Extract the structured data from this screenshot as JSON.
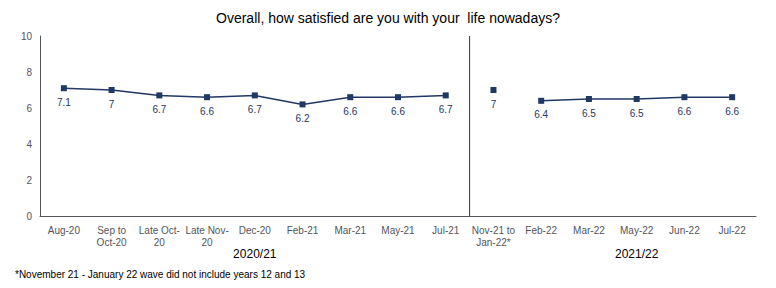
{
  "chart_data": {
    "type": "line",
    "title": "Overall, how satisfied are you with your  life nowadays?",
    "footnote": "*November 21 - January 22 wave did not include years 12 and 13",
    "annotations": [
      "2020/21",
      "2021/22"
    ],
    "categories": [
      "Aug-20",
      "Sep to\nOct-20",
      "Late Oct-\n20",
      "Late Nov-\n20",
      "Dec-20",
      "Feb-21",
      "Mar-21",
      "May-21",
      "Jul-21",
      "Nov-21 to\nJan-22*",
      "Feb-22",
      "Mar-22",
      "May-22",
      "Jun-22",
      "Jul-22"
    ],
    "series": [
      {
        "values": [
          7.1,
          7.0,
          6.7,
          6.6,
          6.7,
          6.2,
          6.6,
          6.6,
          6.7,
          null,
          null,
          null,
          null,
          null,
          null
        ]
      },
      {
        "values": [
          null,
          null,
          null,
          null,
          null,
          null,
          null,
          null,
          null,
          7.0,
          null,
          null,
          null,
          null,
          null
        ]
      },
      {
        "values": [
          null,
          null,
          null,
          null,
          null,
          null,
          null,
          null,
          null,
          null,
          6.4,
          6.5,
          6.5,
          6.6,
          6.6
        ]
      }
    ],
    "color": "#1F3864",
    "marker": "square",
    "ylim": [
      0,
      10
    ],
    "yticks": [
      0,
      2,
      4,
      6,
      8,
      10
    ],
    "grid": false,
    "data_labels": true
  }
}
